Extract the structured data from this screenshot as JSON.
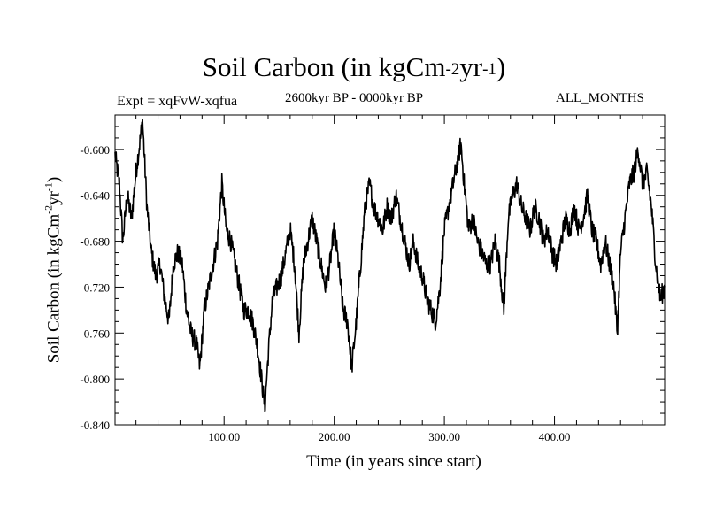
{
  "chart_data": {
    "type": "line",
    "title": {
      "main": "Soil Carbon (in kgCm",
      "sup1": "-2",
      "mid": "yr",
      "sup2": "-1",
      "end": ")"
    },
    "subtitle": "2600kyr BP - 0000kyr BP",
    "experiment": "Expt = xqFvW-xqfua",
    "months": "ALL_MONTHS",
    "xlabel": "Time (in years since start)",
    "ylabel": {
      "main": "Soil Carbon (in kgCm",
      "sup1": "-2",
      "mid": "yr",
      "sup2": "-1",
      "end": ")"
    },
    "xlim": [
      1,
      500
    ],
    "ylim": [
      -0.84,
      -0.57
    ],
    "x_ticks": [
      100,
      200,
      300,
      400
    ],
    "x_tick_labels": [
      "100.00",
      "200.00",
      "300.00",
      "400.00"
    ],
    "y_ticks": [
      -0.84,
      -0.8,
      -0.76,
      -0.72,
      -0.68,
      -0.64,
      -0.6
    ],
    "y_tick_labels": [
      "-0.840",
      "-0.800",
      "-0.760",
      "-0.720",
      "-0.680",
      "-0.640",
      "-0.600"
    ],
    "series": [
      {
        "name": "Soil Carbon",
        "color": "#000000",
        "anchors": [
          [
            1,
            -0.605
          ],
          [
            5,
            -0.63
          ],
          [
            8,
            -0.68
          ],
          [
            12,
            -0.64
          ],
          [
            16,
            -0.66
          ],
          [
            20,
            -0.62
          ],
          [
            24,
            -0.59
          ],
          [
            26,
            -0.575
          ],
          [
            30,
            -0.65
          ],
          [
            34,
            -0.69
          ],
          [
            38,
            -0.71
          ],
          [
            42,
            -0.7
          ],
          [
            46,
            -0.73
          ],
          [
            50,
            -0.75
          ],
          [
            54,
            -0.7
          ],
          [
            58,
            -0.69
          ],
          [
            62,
            -0.7
          ],
          [
            66,
            -0.74
          ],
          [
            70,
            -0.76
          ],
          [
            75,
            -0.77
          ],
          [
            78,
            -0.79
          ],
          [
            82,
            -0.74
          ],
          [
            86,
            -0.72
          ],
          [
            90,
            -0.7
          ],
          [
            94,
            -0.68
          ],
          [
            98,
            -0.63
          ],
          [
            102,
            -0.67
          ],
          [
            106,
            -0.68
          ],
          [
            110,
            -0.7
          ],
          [
            114,
            -0.72
          ],
          [
            118,
            -0.74
          ],
          [
            122,
            -0.74
          ],
          [
            126,
            -0.75
          ],
          [
            130,
            -0.77
          ],
          [
            134,
            -0.8
          ],
          [
            137,
            -0.825
          ],
          [
            140,
            -0.78
          ],
          [
            144,
            -0.73
          ],
          [
            148,
            -0.72
          ],
          [
            152,
            -0.71
          ],
          [
            156,
            -0.69
          ],
          [
            160,
            -0.67
          ],
          [
            164,
            -0.7
          ],
          [
            168,
            -0.76
          ],
          [
            172,
            -0.7
          ],
          [
            176,
            -0.68
          ],
          [
            180,
            -0.66
          ],
          [
            184,
            -0.68
          ],
          [
            188,
            -0.7
          ],
          [
            192,
            -0.72
          ],
          [
            196,
            -0.7
          ],
          [
            200,
            -0.67
          ],
          [
            204,
            -0.7
          ],
          [
            208,
            -0.74
          ],
          [
            212,
            -0.75
          ],
          [
            216,
            -0.79
          ],
          [
            220,
            -0.75
          ],
          [
            224,
            -0.7
          ],
          [
            228,
            -0.65
          ],
          [
            232,
            -0.63
          ],
          [
            236,
            -0.65
          ],
          [
            240,
            -0.66
          ],
          [
            244,
            -0.67
          ],
          [
            248,
            -0.65
          ],
          [
            252,
            -0.66
          ],
          [
            256,
            -0.64
          ],
          [
            260,
            -0.66
          ],
          [
            264,
            -0.68
          ],
          [
            268,
            -0.7
          ],
          [
            272,
            -0.68
          ],
          [
            276,
            -0.7
          ],
          [
            280,
            -0.71
          ],
          [
            284,
            -0.73
          ],
          [
            288,
            -0.74
          ],
          [
            292,
            -0.75
          ],
          [
            296,
            -0.72
          ],
          [
            300,
            -0.67
          ],
          [
            304,
            -0.65
          ],
          [
            308,
            -0.63
          ],
          [
            312,
            -0.61
          ],
          [
            315,
            -0.595
          ],
          [
            318,
            -0.63
          ],
          [
            322,
            -0.67
          ],
          [
            326,
            -0.66
          ],
          [
            330,
            -0.68
          ],
          [
            334,
            -0.69
          ],
          [
            338,
            -0.7
          ],
          [
            342,
            -0.7
          ],
          [
            346,
            -0.68
          ],
          [
            350,
            -0.7
          ],
          [
            354,
            -0.74
          ],
          [
            358,
            -0.66
          ],
          [
            362,
            -0.64
          ],
          [
            366,
            -0.63
          ],
          [
            370,
            -0.65
          ],
          [
            374,
            -0.66
          ],
          [
            378,
            -0.67
          ],
          [
            382,
            -0.65
          ],
          [
            386,
            -0.66
          ],
          [
            390,
            -0.68
          ],
          [
            394,
            -0.67
          ],
          [
            398,
            -0.69
          ],
          [
            402,
            -0.7
          ],
          [
            406,
            -0.68
          ],
          [
            410,
            -0.66
          ],
          [
            414,
            -0.67
          ],
          [
            418,
            -0.65
          ],
          [
            422,
            -0.67
          ],
          [
            426,
            -0.66
          ],
          [
            430,
            -0.64
          ],
          [
            434,
            -0.67
          ],
          [
            438,
            -0.68
          ],
          [
            442,
            -0.7
          ],
          [
            446,
            -0.68
          ],
          [
            450,
            -0.7
          ],
          [
            454,
            -0.72
          ],
          [
            457,
            -0.76
          ],
          [
            460,
            -0.69
          ],
          [
            464,
            -0.66
          ],
          [
            468,
            -0.63
          ],
          [
            472,
            -0.62
          ],
          [
            476,
            -0.6
          ],
          [
            480,
            -0.63
          ],
          [
            484,
            -0.62
          ],
          [
            488,
            -0.65
          ],
          [
            492,
            -0.7
          ],
          [
            496,
            -0.73
          ],
          [
            500,
            -0.72
          ]
        ]
      }
    ]
  }
}
